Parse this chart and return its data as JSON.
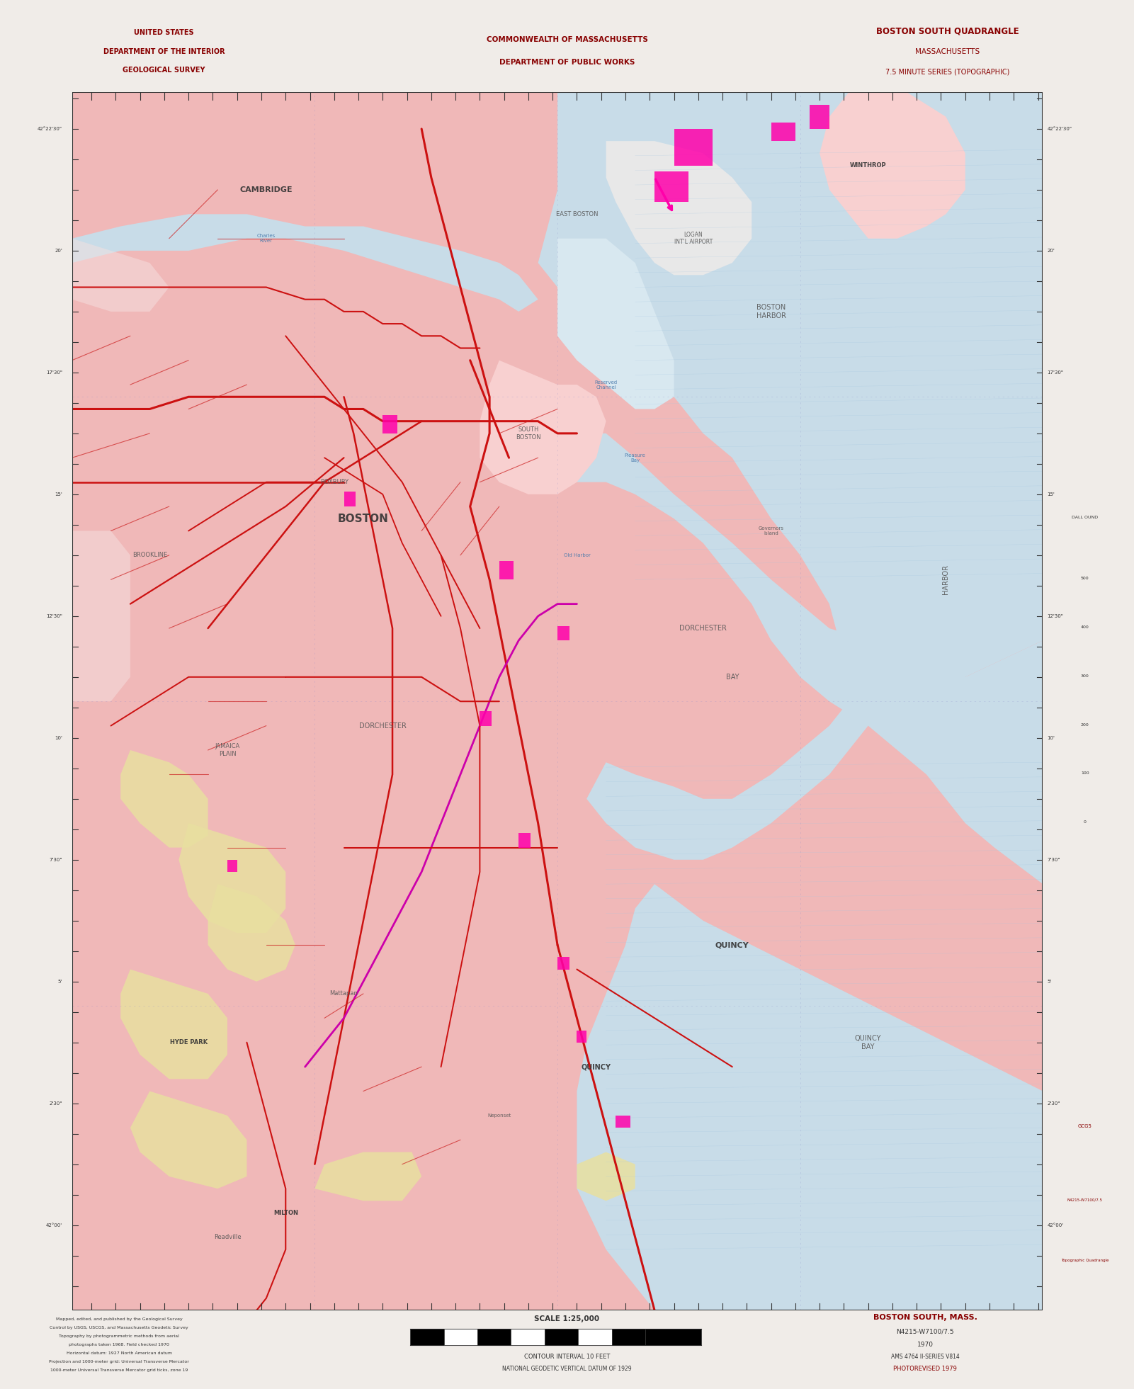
{
  "title_left_line1": "UNITED STATES",
  "title_left_line2": "DEPARTMENT OF THE INTERIOR",
  "title_left_line3": "GEOLOGICAL SURVEY",
  "title_center_line1": "COMMONWEALTH OF MASSACHUSETTS",
  "title_center_line2": "DEPARTMENT OF PUBLIC WORKS",
  "title_right_line1": "BOSTON SOUTH QUADRANGLE",
  "title_right_line2": "MASSACHUSETTS",
  "title_right_line3": "7.5 MINUTE SERIES (TOPOGRAPHIC)",
  "margin_color": "#f0ece8",
  "map_bg_pink": "#f0b8b8",
  "map_bg_light_pink": "#f8d0d0",
  "water_blue": "#c8dce8",
  "water_hatch_blue": "#d0e4f0",
  "yellow_open": "#e8e0a0",
  "road_red": "#cc2222",
  "road_magenta": "#cc00aa",
  "dark_urban": "#e09090",
  "header_text_color": "#880000",
  "border_black": "#333333",
  "fig_width": 15.81,
  "fig_height": 19.41,
  "map_l": 0.058,
  "map_r": 0.925,
  "map_b": 0.052,
  "map_t": 0.938,
  "header_b": 0.938,
  "footer_t": 0.052,
  "scale_text": "SCALE 1:25,000",
  "contour_text": "CONTOUR INTERVAL 10 FEET",
  "datum_text": "NATIONAL GEODETIC VERTICAL DATUM OF 1929",
  "boston_south_label": "BOSTON SOUTH, MASS.",
  "photorevised": "PHOTOREVISED 1979",
  "series_label": "AMS 4764 II-SERIES V814",
  "bottom_right_code": "GCG5\nN4215-W7100/7.5\nTopographic Quadrangle"
}
